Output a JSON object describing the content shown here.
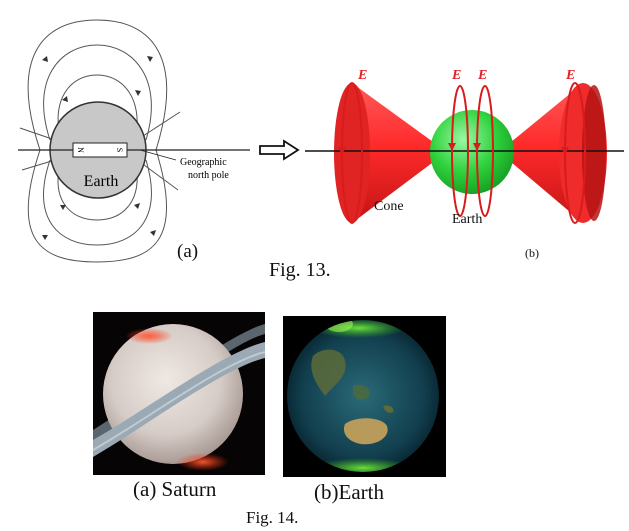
{
  "fig13": {
    "panel_a": {
      "magnet_north": "N",
      "magnet_south": "S",
      "earth_label": "Earth",
      "pole_label_line1": "Geographic",
      "pole_label_line2": "north pole",
      "sublabel": "(a)"
    },
    "panel_b": {
      "field_label": "E",
      "cone_label": "Cone",
      "earth_label": "Earth",
      "sublabel": "(b)"
    },
    "caption": "Fig. 13."
  },
  "fig14": {
    "caption_a": "(a) Saturn",
    "caption_b": "(b)Earth",
    "caption": "Fig. 14."
  },
  "colors": {
    "cone_red": "#ff2a2a",
    "field_loop_red": "#d81c1c",
    "earth_green": "#22cc33",
    "earth_gray": "#c8c8c8"
  }
}
